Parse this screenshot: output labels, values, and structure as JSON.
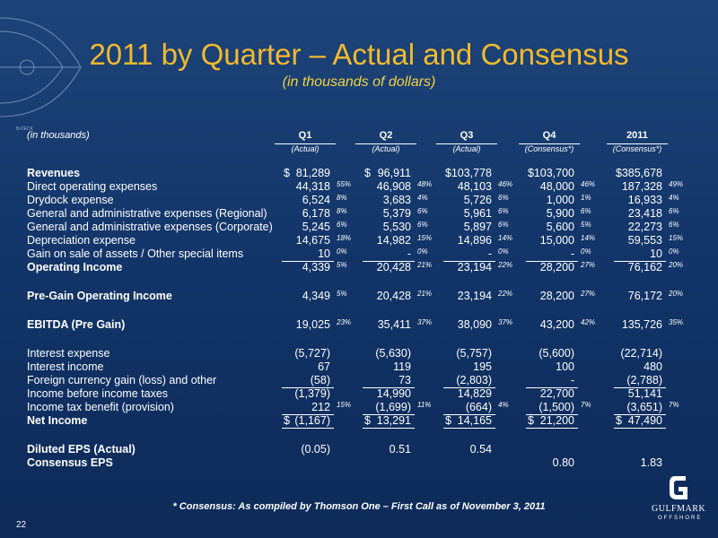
{
  "header": {
    "title": "2011 by Quarter – Actual and Consensus",
    "subtitle": "(in thousands of dollars)",
    "decor_label": "B-DECK"
  },
  "table": {
    "unit_label": "(in thousands)",
    "columns": [
      {
        "name": "Q1",
        "note": "(Actual)"
      },
      {
        "name": "Q2",
        "note": "(Actual)"
      },
      {
        "name": "Q3",
        "note": "(Actual)"
      },
      {
        "name": "Q4",
        "note": "(Consensus*)"
      },
      {
        "name": "2011",
        "note": "(Consensus*)"
      }
    ],
    "sections": [
      [
        {
          "label": "Revenues",
          "bold": true,
          "cells": [
            {
              "cur": "$",
              "v": "81,289"
            },
            {
              "cur": "$",
              "v": "96,911"
            },
            {
              "cur": "$",
              "v": "103,778"
            },
            {
              "cur": "$",
              "v": "103,700"
            },
            {
              "cur": "$",
              "v": "385,678"
            }
          ]
        },
        {
          "label": "Direct operating expenses",
          "cells": [
            {
              "v": "44,318",
              "p": "55%"
            },
            {
              "v": "46,908",
              "p": "48%"
            },
            {
              "v": "48,103",
              "p": "46%"
            },
            {
              "v": "48,000",
              "p": "46%"
            },
            {
              "v": "187,328",
              "p": "49%"
            }
          ]
        },
        {
          "label": "Drydock expense",
          "cells": [
            {
              "v": "6,524",
              "p": "8%"
            },
            {
              "v": "3,683",
              "p": "4%"
            },
            {
              "v": "5,726",
              "p": "6%"
            },
            {
              "v": "1,000",
              "p": "1%"
            },
            {
              "v": "16,933",
              "p": "4%"
            }
          ]
        },
        {
          "label": "General and administrative expenses (Regional)",
          "cells": [
            {
              "v": "6,178",
              "p": "8%"
            },
            {
              "v": "5,379",
              "p": "6%"
            },
            {
              "v": "5,961",
              "p": "6%"
            },
            {
              "v": "5,900",
              "p": "6%"
            },
            {
              "v": "23,418",
              "p": "6%"
            }
          ]
        },
        {
          "label": "General and administrative expenses (Corporate)",
          "cells": [
            {
              "v": "5,245",
              "p": "6%"
            },
            {
              "v": "5,530",
              "p": "6%"
            },
            {
              "v": "5,897",
              "p": "6%"
            },
            {
              "v": "5,600",
              "p": "5%"
            },
            {
              "v": "22,273",
              "p": "6%"
            }
          ]
        },
        {
          "label": "Depreciation expense",
          "cells": [
            {
              "v": "14,675",
              "p": "18%"
            },
            {
              "v": "14,982",
              "p": "15%"
            },
            {
              "v": "14,896",
              "p": "14%"
            },
            {
              "v": "15,000",
              "p": "14%"
            },
            {
              "v": "59,553",
              "p": "15%"
            }
          ]
        },
        {
          "label": "Gain on sale of assets / Other special items",
          "rule": true,
          "cells": [
            {
              "v": "10",
              "p": "0%"
            },
            {
              "v": "-",
              "p": "0%"
            },
            {
              "v": "-",
              "p": "0%"
            },
            {
              "v": "-",
              "p": "0%"
            },
            {
              "v": "10",
              "p": "0%"
            }
          ]
        },
        {
          "label": "Operating Income",
          "bold": true,
          "cells": [
            {
              "v": "4,339",
              "p": "5%"
            },
            {
              "v": "20,428",
              "p": "21%"
            },
            {
              "v": "23,194",
              "p": "22%"
            },
            {
              "v": "28,200",
              "p": "27%"
            },
            {
              "v": "76,162",
              "p": "20%"
            }
          ]
        }
      ],
      [
        {
          "label": "Pre-Gain Operating Income",
          "bold": true,
          "cells": [
            {
              "v": "4,349",
              "p": "5%"
            },
            {
              "v": "20,428",
              "p": "21%"
            },
            {
              "v": "23,194",
              "p": "22%"
            },
            {
              "v": "28,200",
              "p": "27%"
            },
            {
              "v": "76,172",
              "p": "20%"
            }
          ]
        }
      ],
      [
        {
          "label": "EBITDA (Pre Gain)",
          "bold": true,
          "cells": [
            {
              "v": "19,025",
              "p": "23%"
            },
            {
              "v": "35,411",
              "p": "37%"
            },
            {
              "v": "38,090",
              "p": "37%"
            },
            {
              "v": "43,200",
              "p": "42%"
            },
            {
              "v": "135,726",
              "p": "35%"
            }
          ]
        }
      ],
      [
        {
          "label": "Interest expense",
          "cells": [
            {
              "v": "(5,727)"
            },
            {
              "v": "(5,630)"
            },
            {
              "v": "(5,757)"
            },
            {
              "v": "(5,600)"
            },
            {
              "v": "(22,714)"
            }
          ]
        },
        {
          "label": "Interest income",
          "cells": [
            {
              "v": "67"
            },
            {
              "v": "119"
            },
            {
              "v": "195"
            },
            {
              "v": "100"
            },
            {
              "v": "480"
            }
          ]
        },
        {
          "label": "Foreign currency gain (loss) and other",
          "rule": true,
          "cells": [
            {
              "v": "(58)"
            },
            {
              "v": "73"
            },
            {
              "v": "(2,803)"
            },
            {
              "v": "-"
            },
            {
              "v": "(2,788)"
            }
          ]
        },
        {
          "label": "Income before income taxes",
          "cells": [
            {
              "v": "(1,379)"
            },
            {
              "v": "14,990"
            },
            {
              "v": "14,829"
            },
            {
              "v": "22,700"
            },
            {
              "v": "51,141"
            }
          ]
        },
        {
          "label": "Income tax benefit (provision)",
          "rule": true,
          "cells": [
            {
              "v": "212",
              "p": "15%"
            },
            {
              "v": "(1,699)",
              "p": "11%"
            },
            {
              "v": "(664)",
              "p": "4%"
            },
            {
              "v": "(1,500)",
              "p": "7%"
            },
            {
              "v": "(3,651)",
              "p": "7%"
            }
          ]
        },
        {
          "label": "Net Income",
          "bold": true,
          "rule": true,
          "cells": [
            {
              "cur": "$",
              "v": "(1,167)"
            },
            {
              "cur": "$",
              "v": "13,291"
            },
            {
              "cur": "$",
              "v": "14,165"
            },
            {
              "cur": "$",
              "v": "21,200"
            },
            {
              "cur": "$",
              "v": "47,490"
            }
          ]
        }
      ],
      [
        {
          "label": "Diluted EPS (Actual)",
          "bold": true,
          "cells": [
            {
              "v": "(0.05)"
            },
            {
              "v": "0.51"
            },
            {
              "v": "0.54"
            },
            null,
            null
          ]
        },
        {
          "label": "Consensus EPS",
          "bold": true,
          "cells": [
            null,
            null,
            null,
            {
              "v": "0.80"
            },
            {
              "v": "1.83"
            }
          ]
        }
      ]
    ]
  },
  "footer": {
    "note": "* Consensus: As compiled by Thomson One – First Call as of November 3, 2011",
    "page": "22",
    "logo_top": "GULFMARK",
    "logo_bottom": "OFFSHORE"
  }
}
